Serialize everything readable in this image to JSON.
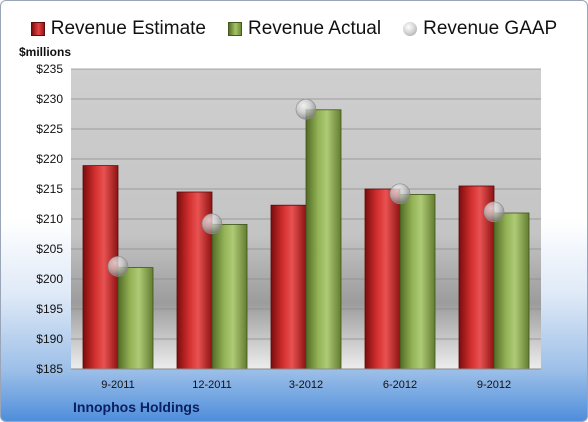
{
  "legend": {
    "estimate": "Revenue Estimate",
    "actual": "Revenue Actual",
    "gaap": "Revenue GAAP"
  },
  "unit_label": "$millions",
  "company": "Innophos Holdings",
  "colors": {
    "estimate": "#c21f1f",
    "actual": "#8fae4c",
    "gaap": "#bdbdbd"
  },
  "chart_data": {
    "type": "bar",
    "categories": [
      "9-2011",
      "12-2011",
      "3-2012",
      "6-2012",
      "9-2012"
    ],
    "series": [
      {
        "name": "Revenue Estimate",
        "values": [
          218.9,
          214.5,
          212.3,
          215.0,
          215.5
        ]
      },
      {
        "name": "Revenue Actual",
        "values": [
          201.9,
          209.1,
          228.2,
          214.1,
          211.0
        ]
      },
      {
        "name": "Revenue GAAP",
        "type": "scatter",
        "values": [
          202.1,
          209.2,
          228.3,
          214.2,
          211.2
        ]
      }
    ],
    "ylim": [
      185,
      235
    ],
    "yticks": [
      "$185",
      "$190",
      "$195",
      "$200",
      "$205",
      "$210",
      "$215",
      "$220",
      "$225",
      "$230",
      "$235"
    ],
    "ylabel": "$millions",
    "grid": true,
    "legend": "top"
  }
}
